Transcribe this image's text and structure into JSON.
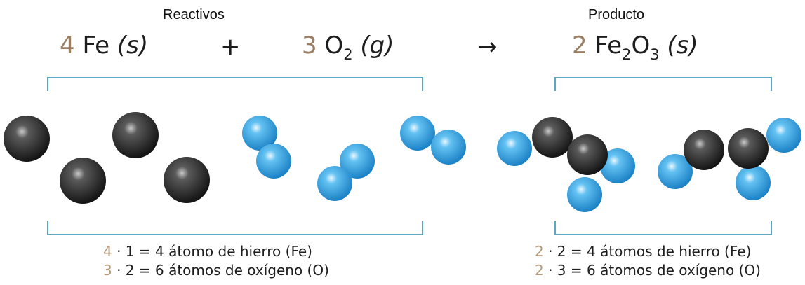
{
  "headers": {
    "reactants": "Reactivos",
    "product": "Producto"
  },
  "equation": {
    "fe": {
      "coef": "4",
      "symbol": "Fe",
      "state": "(s)"
    },
    "plus": "+",
    "o2": {
      "coef": "3",
      "symbol": "O",
      "sub": "2",
      "state": "(g)"
    },
    "arrow": "→",
    "fe2o3": {
      "coef": "2",
      "symbol1": "Fe",
      "sub1": "2",
      "symbol2": "O",
      "sub2": "3",
      "state": "(s)"
    }
  },
  "counts": {
    "reactants": [
      {
        "coef": "4",
        "rest": " · 1 = 4 átomo de hierro (Fe)"
      },
      {
        "coef": "3",
        "rest": " · 2 = 6 átomos de oxígeno (O)"
      }
    ],
    "product": [
      {
        "coef": "2",
        "rest": " · 2 = 4 átomos de hierro (Fe)"
      },
      {
        "coef": "2",
        "rest": " · 3 = 6 átomos de oxígeno (O)"
      }
    ]
  },
  "colors": {
    "iron": "#2b2b2b",
    "oxygen": "#3aa9e6",
    "bracket": "#5aa6c5",
    "coefficient": "#9a7f64"
  }
}
